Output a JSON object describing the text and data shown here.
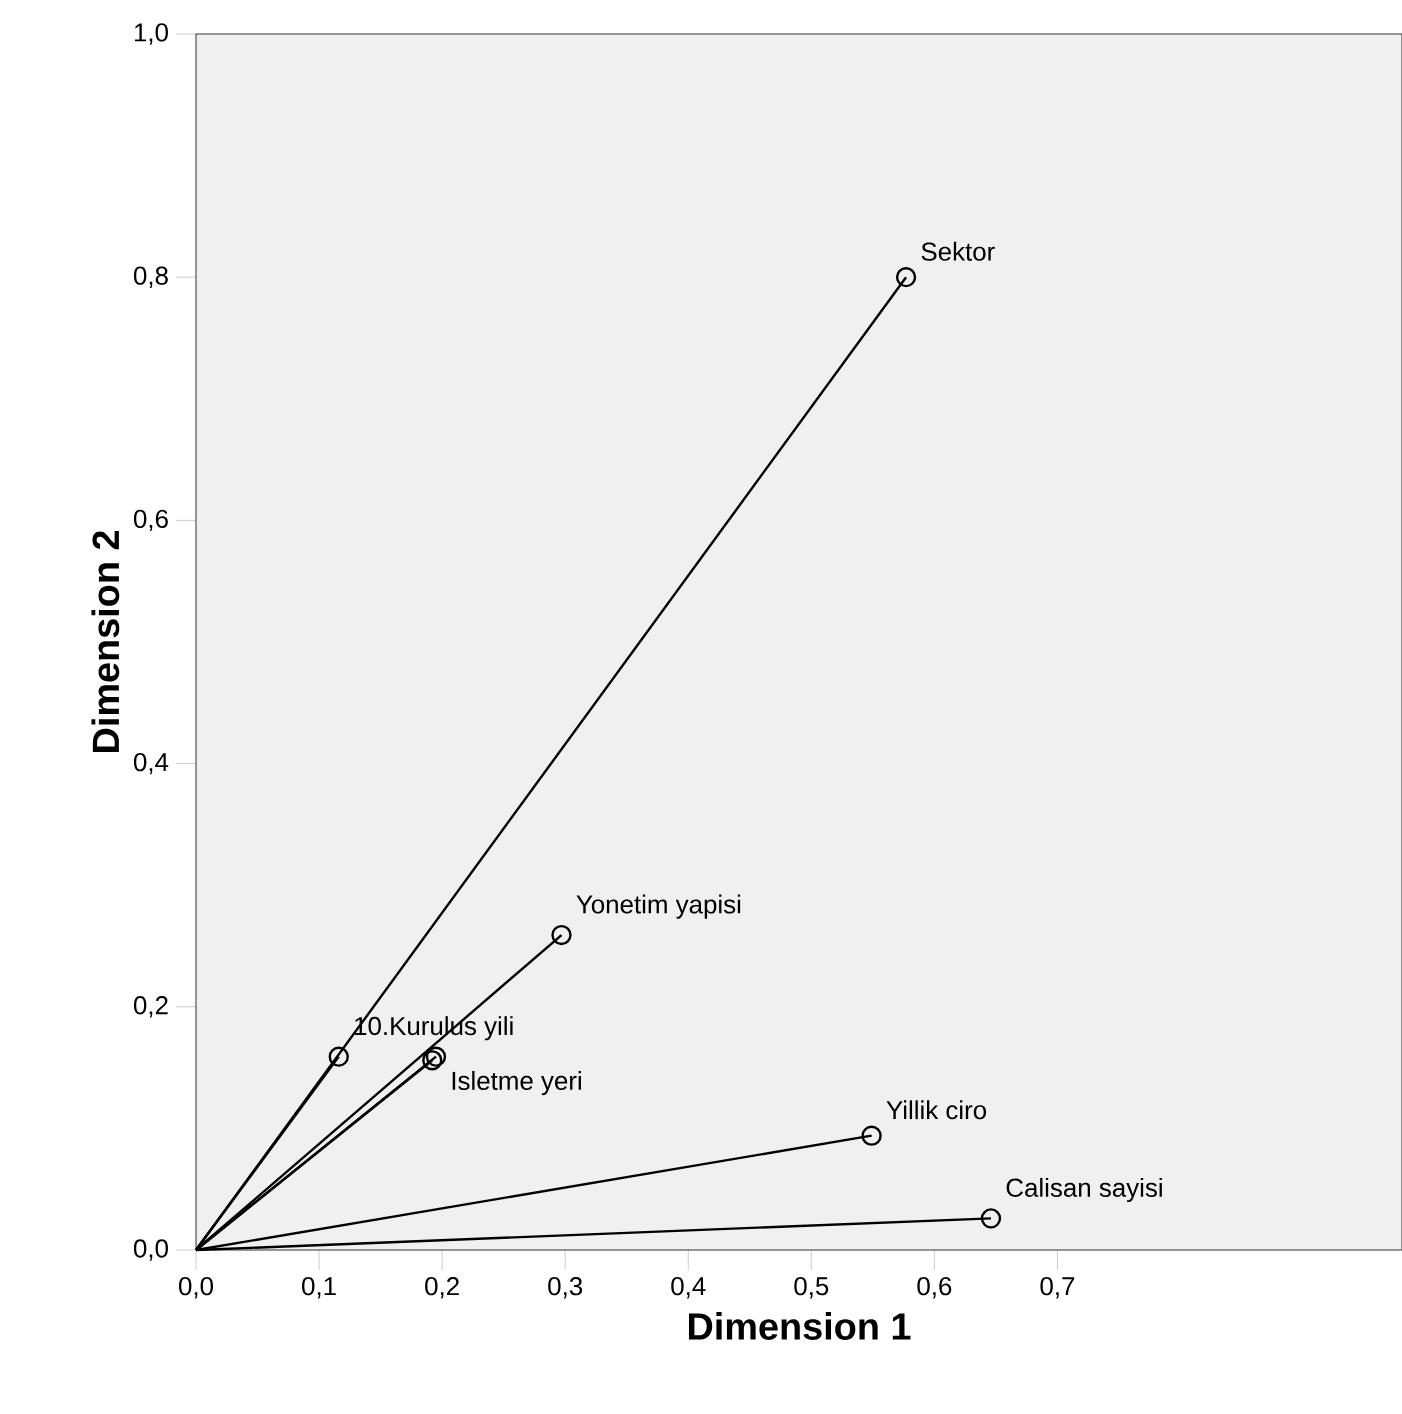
{
  "chart_data": {
    "type": "line",
    "xlabel": "Dimension 1",
    "ylabel": "Dimension 2",
    "xlim": [
      0,
      0.98
    ],
    "ylim": [
      0,
      1.0
    ],
    "xticks": [
      {
        "value": 0,
        "label": "0,0"
      },
      {
        "value": 0.1,
        "label": "0,1"
      },
      {
        "value": 0.2,
        "label": "0,2"
      },
      {
        "value": 0.3,
        "label": "0,3"
      },
      {
        "value": 0.4,
        "label": "0,4"
      },
      {
        "value": 0.5,
        "label": "0,5"
      },
      {
        "value": 0.6,
        "label": "0,6"
      },
      {
        "value": 0.7,
        "label": "0,7"
      }
    ],
    "yticks": [
      {
        "value": 0,
        "label": "0,0"
      },
      {
        "value": 0.2,
        "label": "0,2"
      },
      {
        "value": 0.4,
        "label": "0,4"
      },
      {
        "value": 0.6,
        "label": "0,6"
      },
      {
        "value": 0.8,
        "label": "0,8"
      },
      {
        "value": 1.0,
        "label": "1,0"
      }
    ],
    "marker": "circle",
    "grid": false,
    "series": [
      {
        "name": "Sektor",
        "color": "#000000",
        "x": [
          0,
          0.577
        ],
        "values": [
          0,
          0.8
        ]
      },
      {
        "name": "Yonetim yapisi",
        "color": "#000000",
        "x": [
          0,
          0.297
        ],
        "values": [
          0,
          0.259
        ]
      },
      {
        "name": "10.Kurulus yili",
        "color": "#000000",
        "x": [
          0,
          0.116
        ],
        "values": [
          0,
          0.159
        ]
      },
      {
        "name": "Isletme yeri",
        "color": "#000000",
        "x": [
          0,
          0.195
        ],
        "values": [
          0,
          0.159
        ]
      },
      {
        "color": "#000000",
        "x": [
          0,
          0.192
        ],
        "values": [
          0,
          0.156
        ]
      },
      {
        "name": "Yillik ciro",
        "color": "#000000",
        "x": [
          0,
          0.549
        ],
        "values": [
          0,
          0.094
        ]
      },
      {
        "name": "Calisan sayisi",
        "color": "#000000",
        "x": [
          0,
          0.646
        ],
        "values": [
          0,
          0.026
        ]
      }
    ]
  }
}
